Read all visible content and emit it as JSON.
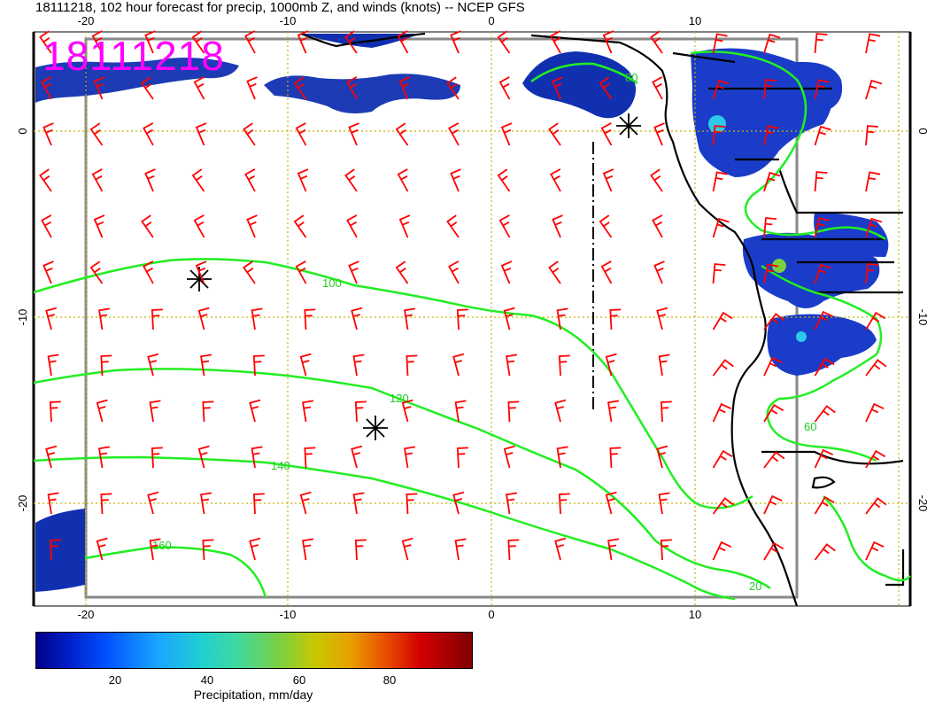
{
  "title": "18111218, 102 hour forecast for precip, 1000mb Z, and winds (knots) -- NCEP GFS",
  "stamp": "18111218",
  "axes": {
    "top_lon_labels": [
      "-20",
      "-10",
      "0",
      "10"
    ],
    "bottom_lon_labels": [
      "-20",
      "-10",
      "0",
      "10"
    ],
    "left_lat_labels": [
      "0",
      "-10",
      "-20"
    ],
    "right_lat_labels": [
      "0",
      "-10",
      "-20"
    ]
  },
  "contours": [
    {
      "label": "100"
    },
    {
      "label": "120"
    },
    {
      "label": "140"
    },
    {
      "label": "160"
    },
    {
      "label": "80"
    },
    {
      "label": "60"
    },
    {
      "label": "20"
    }
  ],
  "colorbar": {
    "ticks": [
      "20",
      "40",
      "60",
      "80"
    ],
    "label": "Precipitation, mm/day"
  },
  "colors": {
    "contour": "#22ee22",
    "wind_barb": "#ff0000",
    "coast": "#000000",
    "stamp": "#ff00ff",
    "grid": "#c8b400"
  }
}
